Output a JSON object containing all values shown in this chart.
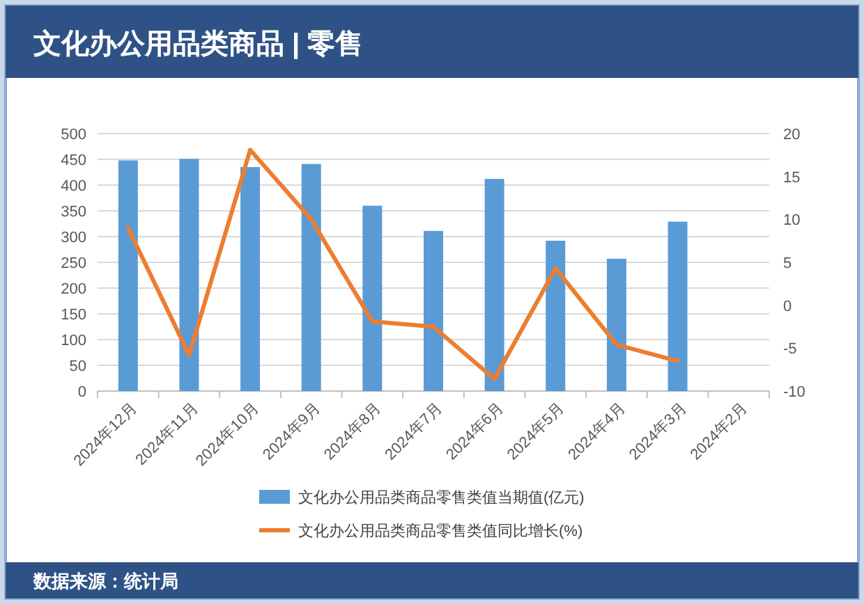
{
  "chart_data": {
    "type": "bar",
    "title": "文化办公用品类商品 | 零售",
    "categories": [
      "2024年12月",
      "2024年11月",
      "2024年10月",
      "2024年9月",
      "2024年8月",
      "2024年7月",
      "2024年6月",
      "2024年5月",
      "2024年4月",
      "2024年3月",
      "2024年2月"
    ],
    "series": [
      {
        "name": "文化办公用品类商品零售类值当期值(亿元)",
        "color": "#5b9bd5",
        "values": [
          448,
          451,
          435,
          441,
          360,
          311,
          412,
          292,
          257,
          329,
          null
        ]
      },
      {
        "name": "文化办公用品类商品零售类值同比增长(%)",
        "type": "line",
        "axis": "y2",
        "color": "#ed7d31",
        "values": [
          9.0,
          -5.8,
          18.1,
          10.0,
          -1.9,
          -2.5,
          -8.6,
          4.3,
          -4.6,
          -6.5,
          null
        ]
      }
    ],
    "ylim": [
      0,
      500
    ],
    "yticks": [
      0,
      50,
      100,
      150,
      200,
      250,
      300,
      350,
      400,
      450,
      500
    ],
    "y2lim": [
      -10,
      20
    ],
    "y2ticks": [
      -10,
      -5,
      0,
      5,
      10,
      15,
      20
    ],
    "grid": "y",
    "legend": "bottom",
    "annotations": [
      "数据来源：统计局"
    ]
  }
}
